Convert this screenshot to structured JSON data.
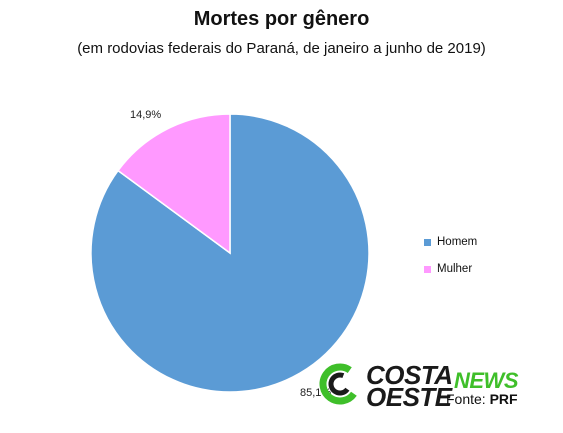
{
  "title": "Mortes por gênero",
  "subtitle": "(em rodovias federais do Paraná, de janeiro a junho de 2019)",
  "chart_data": {
    "type": "pie",
    "title": "Mortes por gênero",
    "subtitle": "(em rodovias federais do Paraná, de janeiro a junho de 2019)",
    "categories": [
      "Homem",
      "Mulher"
    ],
    "values": [
      85.1,
      14.9
    ],
    "labels": [
      "85,1%",
      "14,9%"
    ],
    "colors": [
      "#5b9bd5",
      "#ff99ff"
    ],
    "legend_position": "right"
  },
  "logo": {
    "line1": "COSTA",
    "line2": "OESTE",
    "accent": "NEWS",
    "accent_color": "#3fbf2a"
  },
  "source": {
    "prefix": "Fonte: ",
    "name": "PRF"
  }
}
